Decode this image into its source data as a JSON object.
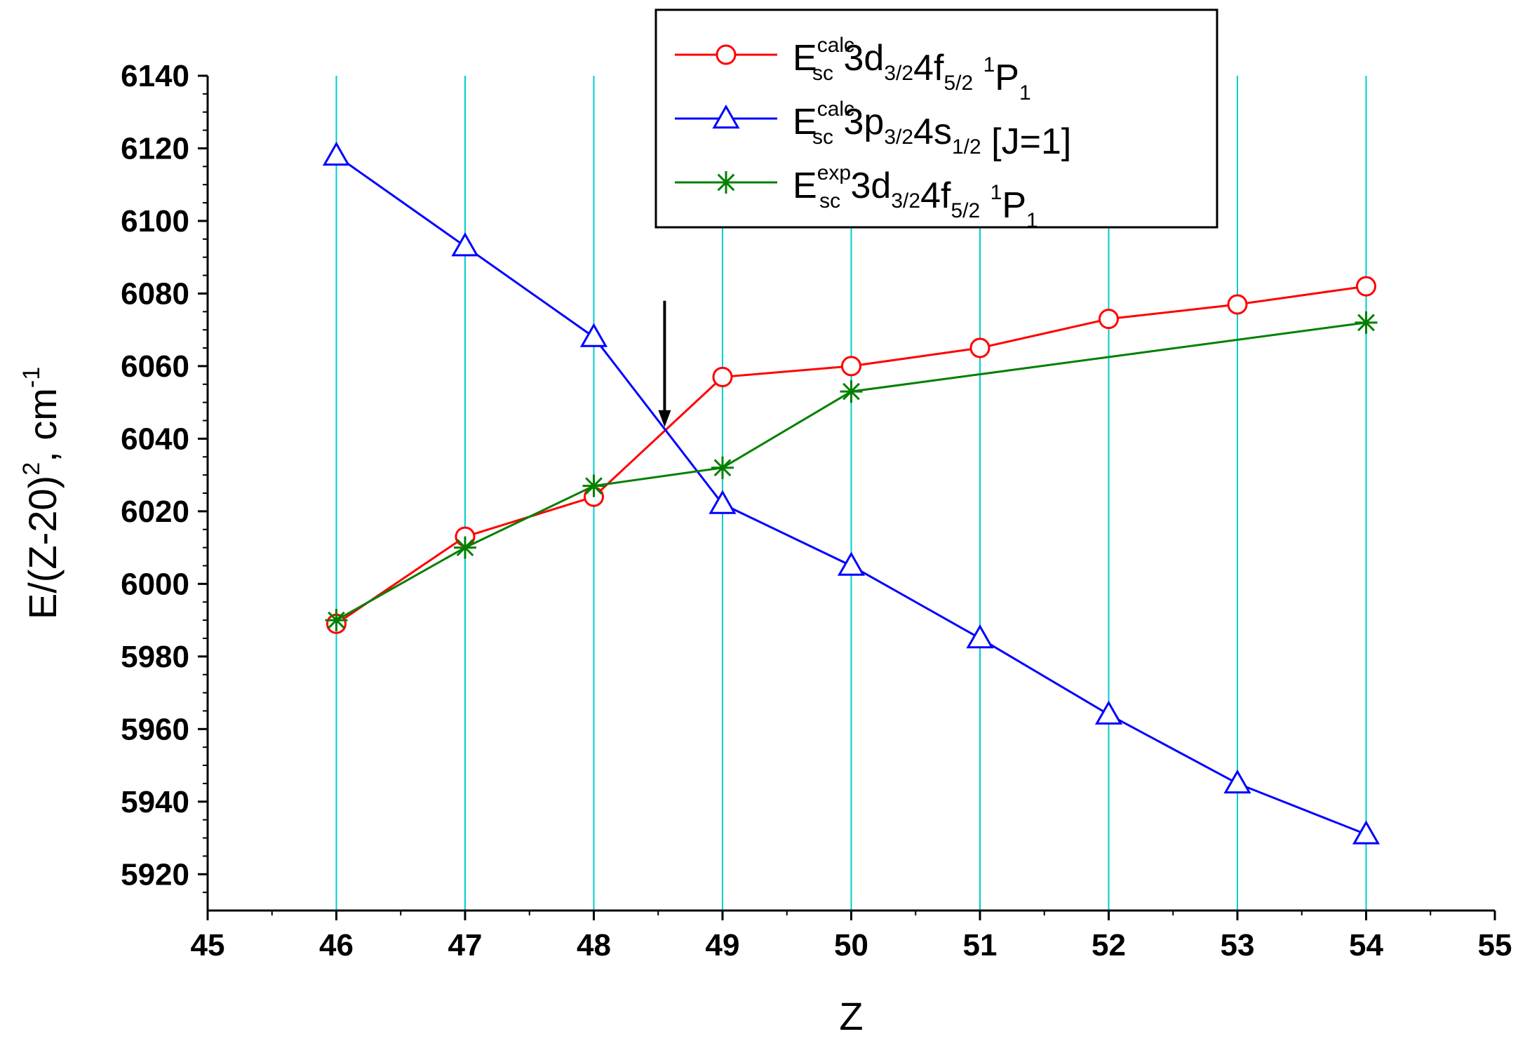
{
  "chart_data": {
    "type": "line",
    "xlabel": "Z",
    "ylabel": {
      "base": "E/(Z-20)",
      "exponent": "2",
      "unit": ", cm",
      "unit_exponent": "-1"
    },
    "xlim": [
      45,
      55
    ],
    "ylim": [
      5910,
      6140
    ],
    "x_ticks": [
      45,
      46,
      47,
      48,
      49,
      50,
      51,
      52,
      53,
      54,
      55
    ],
    "y_ticks": [
      5920,
      5940,
      5960,
      5980,
      6000,
      6020,
      6040,
      6060,
      6080,
      6100,
      6120,
      6140
    ],
    "vertical_gridlines_at": [
      46,
      47,
      48,
      49,
      50,
      51,
      52,
      53,
      54
    ],
    "grid_color": "#00CCCC",
    "legend_position": "top-center",
    "annotation": {
      "type": "arrow",
      "direction": "down",
      "x": 48.55,
      "y_from": 6078,
      "y_to": 6044
    },
    "series": [
      {
        "name_parts": {
          "E": "E",
          "sup": "calc",
          "sub": "sc",
          "config": [
            [
              "3d",
              "3/2"
            ],
            [
              "4f",
              "5/2"
            ]
          ],
          "term_sup": "1",
          "term": "P",
          "term_sub": "1"
        },
        "color": "#FF0000",
        "marker": "circle",
        "x": [
          46,
          47,
          48,
          49,
          50,
          51,
          52,
          53,
          54
        ],
        "values": [
          5989,
          6013,
          6024,
          6057,
          6060,
          6065,
          6073,
          6077,
          6082
        ]
      },
      {
        "name_parts": {
          "E": "E",
          "sup": "calc",
          "sub": "sc",
          "config": [
            [
              "3p",
              "3/2"
            ],
            [
              "4s",
              "1/2"
            ]
          ],
          "bracket": "[J=1]"
        },
        "color": "#0000FF",
        "marker": "triangle",
        "x": [
          46,
          47,
          48,
          49,
          50,
          51,
          52,
          53,
          54
        ],
        "values": [
          6118,
          6093,
          6068,
          6022,
          6005,
          5985,
          5964,
          5945,
          5931
        ]
      },
      {
        "name_parts": {
          "E": "E",
          "sup": "exp",
          "sub": "sc",
          "config": [
            [
              "3d",
              "3/2"
            ],
            [
              "4f",
              "5/2"
            ]
          ],
          "term_sup": "1",
          "term": "P",
          "term_sub": "1"
        },
        "color": "#008000",
        "marker": "star",
        "x": [
          46,
          47,
          48,
          49,
          50,
          54
        ],
        "values": [
          5990,
          6010,
          6027,
          6032,
          6053,
          6072
        ]
      }
    ]
  }
}
